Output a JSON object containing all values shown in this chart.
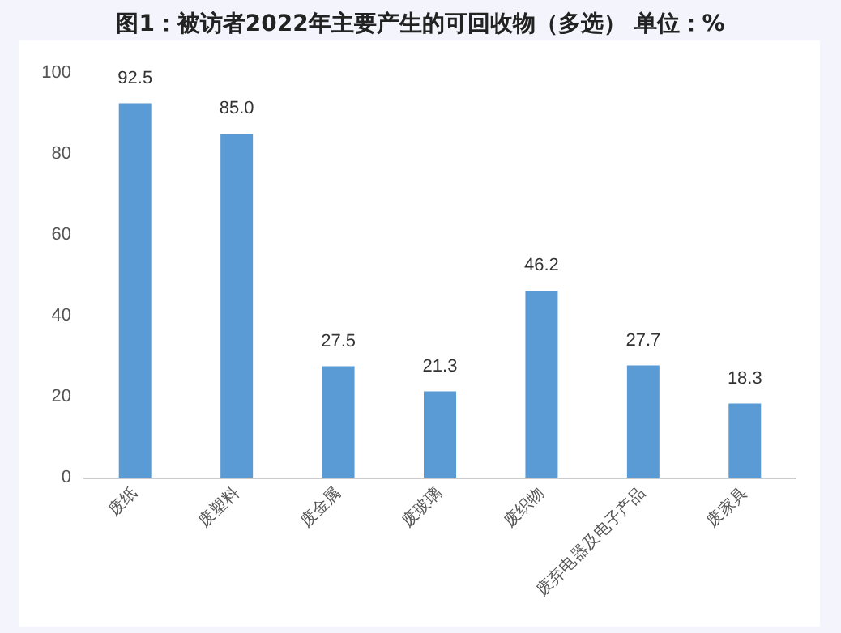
{
  "chart_data": {
    "type": "bar",
    "title": "图1：被访者2022年主要产生的可回收物（多选） 单位：%",
    "categories": [
      "废纸",
      "废塑料",
      "废金属",
      "废玻璃",
      "废织物",
      "废弃电器及电子产品",
      "废家具"
    ],
    "values": [
      92.5,
      85.0,
      27.5,
      21.3,
      46.2,
      27.7,
      18.3
    ],
    "color": "#5b9bd5",
    "value_labels": [
      "92.5",
      "85.0",
      "27.5",
      "21.3",
      "46.2",
      "27.7",
      "18.3"
    ],
    "ylim": [
      0,
      100
    ],
    "yticks": [
      0,
      20,
      40,
      60,
      80,
      100
    ],
    "grid": false
  }
}
